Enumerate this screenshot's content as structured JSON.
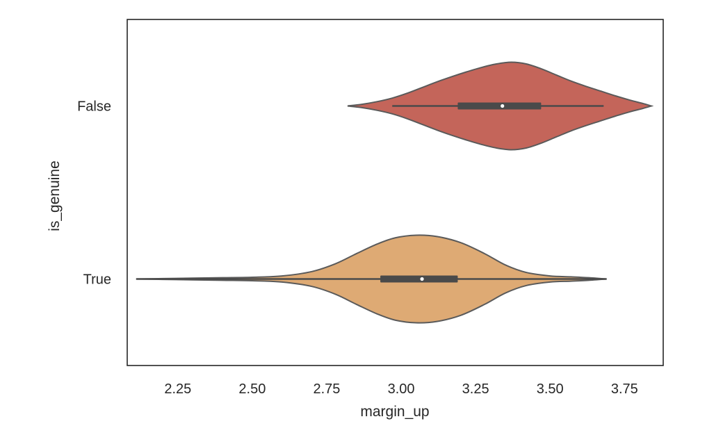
{
  "chart_data": {
    "type": "violin",
    "orientation": "horizontal",
    "xlabel": "margin_up",
    "ylabel": "is_genuine",
    "xlim": [
      2.08,
      3.88
    ],
    "x_ticks": [
      2.25,
      2.5,
      2.75,
      3.0,
      3.25,
      3.5,
      3.75
    ],
    "x_tick_labels": [
      "2.25",
      "2.50",
      "2.75",
      "3.00",
      "3.25",
      "3.50",
      "3.75"
    ],
    "categories": [
      "False",
      "True"
    ],
    "grid": false,
    "legend": "none",
    "series": [
      {
        "category": "False",
        "color": "#c4655a",
        "edge_color": "#5a5a5a",
        "min": 2.82,
        "q1": 3.19,
        "median": 3.34,
        "q3": 3.47,
        "max": 3.84,
        "whisker_low": 2.97,
        "whisker_high": 3.68,
        "density": [
          [
            2.82,
            0.0
          ],
          [
            2.87,
            0.04
          ],
          [
            2.92,
            0.1
          ],
          [
            2.97,
            0.18
          ],
          [
            3.02,
            0.29
          ],
          [
            3.07,
            0.42
          ],
          [
            3.12,
            0.55
          ],
          [
            3.17,
            0.67
          ],
          [
            3.22,
            0.78
          ],
          [
            3.27,
            0.88
          ],
          [
            3.32,
            0.96
          ],
          [
            3.37,
            1.0
          ],
          [
            3.42,
            0.96
          ],
          [
            3.47,
            0.85
          ],
          [
            3.52,
            0.71
          ],
          [
            3.57,
            0.57
          ],
          [
            3.62,
            0.45
          ],
          [
            3.67,
            0.34
          ],
          [
            3.72,
            0.23
          ],
          [
            3.77,
            0.13
          ],
          [
            3.81,
            0.06
          ],
          [
            3.84,
            0.0
          ]
        ]
      },
      {
        "category": "True",
        "color": "#deaa74",
        "edge_color": "#5a5a5a",
        "min": 2.11,
        "q1": 2.93,
        "median": 3.07,
        "q3": 3.19,
        "max": 3.69,
        "whisker_low": 2.11,
        "whisker_high": 3.69,
        "density": [
          [
            2.11,
            0.0
          ],
          [
            2.2,
            0.01
          ],
          [
            2.3,
            0.02
          ],
          [
            2.4,
            0.03
          ],
          [
            2.5,
            0.04
          ],
          [
            2.6,
            0.07
          ],
          [
            2.7,
            0.17
          ],
          [
            2.78,
            0.35
          ],
          [
            2.85,
            0.58
          ],
          [
            2.92,
            0.8
          ],
          [
            2.98,
            0.94
          ],
          [
            3.05,
            1.0
          ],
          [
            3.12,
            0.97
          ],
          [
            3.2,
            0.83
          ],
          [
            3.28,
            0.58
          ],
          [
            3.35,
            0.32
          ],
          [
            3.42,
            0.15
          ],
          [
            3.5,
            0.07
          ],
          [
            3.57,
            0.05
          ],
          [
            3.63,
            0.03
          ],
          [
            3.69,
            0.0
          ]
        ]
      }
    ]
  }
}
